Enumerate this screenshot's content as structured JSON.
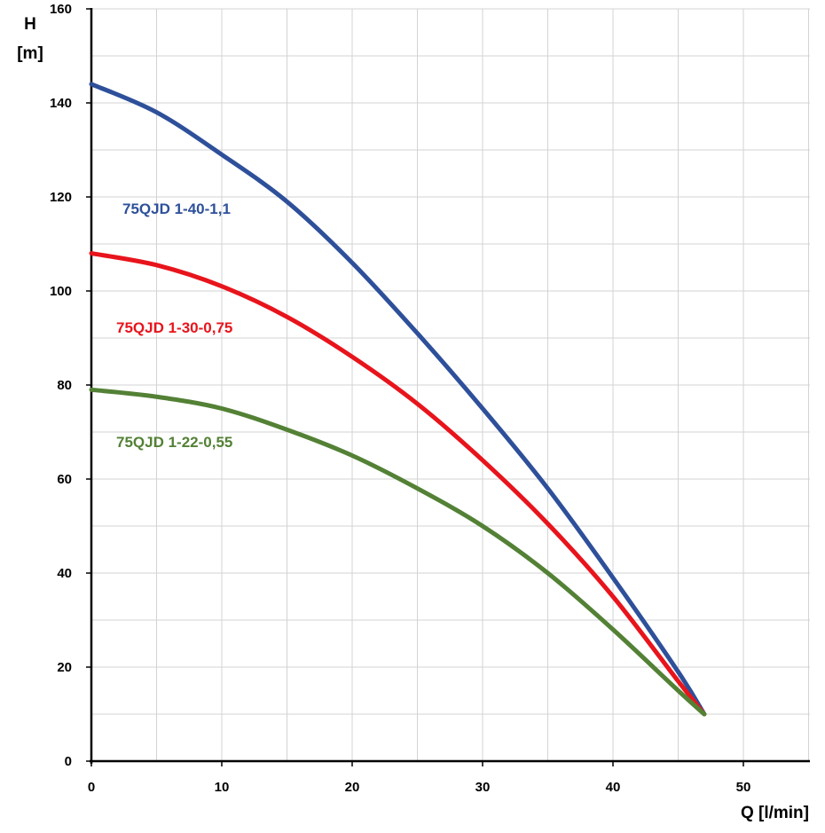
{
  "chart_data": {
    "type": "line",
    "title": "",
    "xlabel": "Q [l/min]",
    "ylabel_line1": "H",
    "ylabel_line2": "[m]",
    "xlim": [
      0,
      55
    ],
    "ylim": [
      0,
      160
    ],
    "xminor_step": 5,
    "yminor_step": 10,
    "xticks": [
      0,
      10,
      20,
      30,
      40,
      50
    ],
    "yticks": [
      0,
      20,
      40,
      60,
      80,
      100,
      120,
      140,
      160
    ],
    "xtick_labels": [
      "0",
      "10",
      "20",
      "30",
      "40",
      "50"
    ],
    "ytick_labels": [
      "0",
      "20",
      "40",
      "60",
      "80",
      "100",
      "120",
      "140",
      "160"
    ],
    "grid": true,
    "series": [
      {
        "name": "75QJD 1-40-1,1",
        "color": "#2E509A",
        "x": [
          0,
          5,
          10,
          15,
          20,
          25,
          30,
          35,
          40,
          45,
          47
        ],
        "y": [
          144,
          138,
          129,
          119,
          106,
          91,
          75,
          58,
          39,
          19,
          10
        ]
      },
      {
        "name": "75QJD 1-30-0,75",
        "color": "#E8141C",
        "x": [
          0,
          5,
          10,
          15,
          20,
          25,
          30,
          35,
          40,
          45,
          47
        ],
        "y": [
          108,
          105.5,
          101,
          94.5,
          86,
          76,
          64,
          50.5,
          35,
          17,
          10
        ]
      },
      {
        "name": "75QJD 1-22-0,55",
        "color": "#538135",
        "x": [
          0,
          5,
          10,
          15,
          20,
          25,
          30,
          35,
          40,
          45,
          47
        ],
        "y": [
          79,
          77.5,
          75,
          70.5,
          65,
          58,
          50,
          40,
          28,
          15,
          10
        ]
      }
    ]
  }
}
